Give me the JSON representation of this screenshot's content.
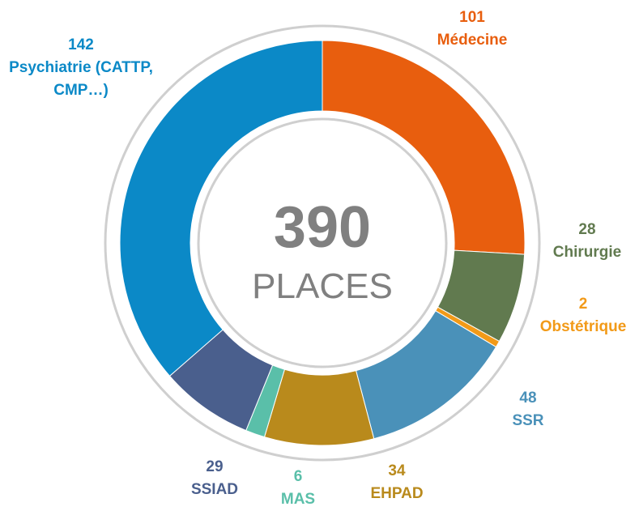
{
  "chart_data": {
    "type": "pie",
    "categories": [
      "Médecine",
      "Chirurgie",
      "Obstétrique",
      "SSR",
      "EHPAD",
      "MAS",
      "SSIAD",
      "Psychiatrie (CATTP, CMP…)"
    ],
    "values": [
      101,
      28,
      2,
      48,
      34,
      6,
      29,
      142
    ],
    "colors": [
      "#e85e0e",
      "#617a4f",
      "#f29a18",
      "#4a91b9",
      "#b98a1c",
      "#5abfa9",
      "#4a5f8d",
      "#0b89c7"
    ],
    "center_value": 390,
    "center_label": "PLACES"
  }
}
